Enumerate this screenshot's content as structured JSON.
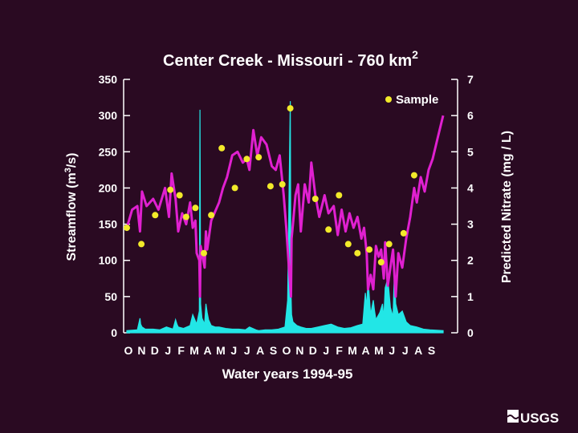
{
  "colors": {
    "background": "#2a0a22",
    "streamflow": "#22e6e6",
    "nitrate": "#e020d0",
    "sample": "#f2ea2a",
    "axis": "#ffffff",
    "text": "#ffffff"
  },
  "chart_data": {
    "type": "line",
    "title_text": "Center Creek - Missouri - 760 km",
    "title_superscript": "2",
    "xlabel": "Water years 1994-95",
    "ylabel_left_main": "Streamflow (m",
    "ylabel_left_sup": "3",
    "ylabel_left_end": "/s)",
    "ylabel_right": "Predicted Nitrate (mg / L)",
    "ylim_left": [
      0,
      350
    ],
    "ylim_right": [
      0,
      7
    ],
    "left_ticks": [
      "0",
      "50",
      "100",
      "150",
      "200",
      "250",
      "300",
      "350"
    ],
    "right_ticks": [
      "0",
      "1",
      "2",
      "3",
      "4",
      "5",
      "6",
      "7"
    ],
    "x_tick_labels": [
      "O",
      "N",
      "D",
      "J",
      "F",
      "M",
      "A",
      "M",
      "J",
      "J",
      "A",
      "S",
      "O",
      "N",
      "D",
      "J",
      "F",
      "M",
      "A",
      "M",
      "J",
      "J",
      "A",
      "S"
    ],
    "xlim_months": [
      0,
      24
    ],
    "legend": {
      "label": "Sample",
      "position": "top-right"
    },
    "streamflow": {
      "name": "Streamflow",
      "x": [
        0,
        0.8,
        1.0,
        1.05,
        1.15,
        1.4,
        2.0,
        2.5,
        3.0,
        3.5,
        3.7,
        3.8,
        3.9,
        4.3,
        4.8,
        5.0,
        5.3,
        5.5,
        5.55,
        5.6,
        5.7,
        5.9,
        6.0,
        6.1,
        6.2,
        6.4,
        6.7,
        7.0,
        7.5,
        8.0,
        8.5,
        9.0,
        9.3,
        9.8,
        10.0,
        10.5,
        11.0,
        11.5,
        12.0,
        12.2,
        12.4,
        12.45,
        12.5,
        12.6,
        12.9,
        13.2,
        13.6,
        14.0,
        14.5,
        15.0,
        15.5,
        16.0,
        16.5,
        17.0,
        17.5,
        17.9,
        18.1,
        18.2,
        18.3,
        18.5,
        18.7,
        18.8,
        18.9,
        19.2,
        19.4,
        19.5,
        19.6,
        19.8,
        20.0,
        20.2,
        20.3,
        20.4,
        20.6,
        20.9,
        21.2,
        21.5,
        22.0,
        22.5,
        23.0,
        24.0
      ],
      "values": [
        3,
        4,
        20,
        12,
        8,
        5,
        5,
        4,
        8,
        5,
        18,
        12,
        8,
        6,
        10,
        25,
        12,
        30,
        308,
        40,
        20,
        12,
        40,
        28,
        18,
        10,
        8,
        8,
        6,
        5,
        5,
        4,
        8,
        4,
        3,
        4,
        4,
        5,
        8,
        45,
        320,
        60,
        25,
        15,
        10,
        8,
        6,
        6,
        8,
        10,
        12,
        8,
        6,
        7,
        10,
        12,
        55,
        35,
        75,
        25,
        45,
        30,
        18,
        28,
        40,
        20,
        62,
        75,
        35,
        22,
        85,
        40,
        25,
        30,
        15,
        10,
        8,
        5,
        4,
        3
      ]
    },
    "nitrate": {
      "name": "Predicted nitrate",
      "x": [
        0,
        0.4,
        0.8,
        1.0,
        1.15,
        1.5,
        2.0,
        2.4,
        2.9,
        3.2,
        3.4,
        3.7,
        3.9,
        4.2,
        4.5,
        4.8,
        5.0,
        5.2,
        5.3,
        5.5,
        5.55,
        5.6,
        5.9,
        6.0,
        6.1,
        6.4,
        7.0,
        7.3,
        7.6,
        8.0,
        8.4,
        8.8,
        9.1,
        9.3,
        9.6,
        9.9,
        10.2,
        10.6,
        11.0,
        11.3,
        11.6,
        11.9,
        12.1,
        12.3,
        12.45,
        12.5,
        12.6,
        12.8,
        13.0,
        13.2,
        13.5,
        13.8,
        14.0,
        14.3,
        14.6,
        15.0,
        15.3,
        15.7,
        16.0,
        16.3,
        16.6,
        16.9,
        17.2,
        17.5,
        17.8,
        18.0,
        18.2,
        18.3,
        18.5,
        18.7,
        18.9,
        19.1,
        19.3,
        19.5,
        19.6,
        19.8,
        20.0,
        20.2,
        20.4,
        20.6,
        20.9,
        21.2,
        21.5,
        21.8,
        22.0,
        22.3,
        22.6,
        22.9,
        23.2,
        23.6,
        24.0
      ],
      "values": [
        2.9,
        3.4,
        3.5,
        2.8,
        3.9,
        3.5,
        3.7,
        3.4,
        4.0,
        3.2,
        4.4,
        3.7,
        2.8,
        3.3,
        3.0,
        3.6,
        2.9,
        3.1,
        2.2,
        2.0,
        1.0,
        2.4,
        1.8,
        2.8,
        2.3,
        3.1,
        3.6,
        4.0,
        4.3,
        4.9,
        5.0,
        4.7,
        4.8,
        4.5,
        5.6,
        4.9,
        5.4,
        5.2,
        4.6,
        4.5,
        4.9,
        3.8,
        2.9,
        1.8,
        1.0,
        2.6,
        3.0,
        3.8,
        4.1,
        2.8,
        4.1,
        3.6,
        4.7,
        3.8,
        3.2,
        3.8,
        3.3,
        3.5,
        2.7,
        3.4,
        2.8,
        3.3,
        2.9,
        3.2,
        2.6,
        2.9,
        2.2,
        1.2,
        1.6,
        1.2,
        2.4,
        2.1,
        2.3,
        1.5,
        2.5,
        1.3,
        1.8,
        2.3,
        1.0,
        2.2,
        1.8,
        2.6,
        3.2,
        4.0,
        3.6,
        4.3,
        3.9,
        4.5,
        4.8,
        5.4,
        6.0
      ]
    },
    "samples": {
      "name": "Sample",
      "x": [
        0,
        1.1,
        2.15,
        3.3,
        4.0,
        4.5,
        5.2,
        5.85,
        6.4,
        7.2,
        8.2,
        9.1,
        10.0,
        10.9,
        11.8,
        12.4,
        14.3,
        15.3,
        16.1,
        16.8,
        17.5,
        18.4,
        19.3,
        19.9,
        21.0,
        21.8
      ],
      "values": [
        2.9,
        2.45,
        3.25,
        3.95,
        3.8,
        3.2,
        3.45,
        2.2,
        3.25,
        5.1,
        4.0,
        4.8,
        4.85,
        4.05,
        4.1,
        6.2,
        3.7,
        2.85,
        3.8,
        2.45,
        2.2,
        2.3,
        1.95,
        2.45,
        2.75,
        4.35
      ]
    }
  },
  "logo": {
    "text": "USGS"
  }
}
